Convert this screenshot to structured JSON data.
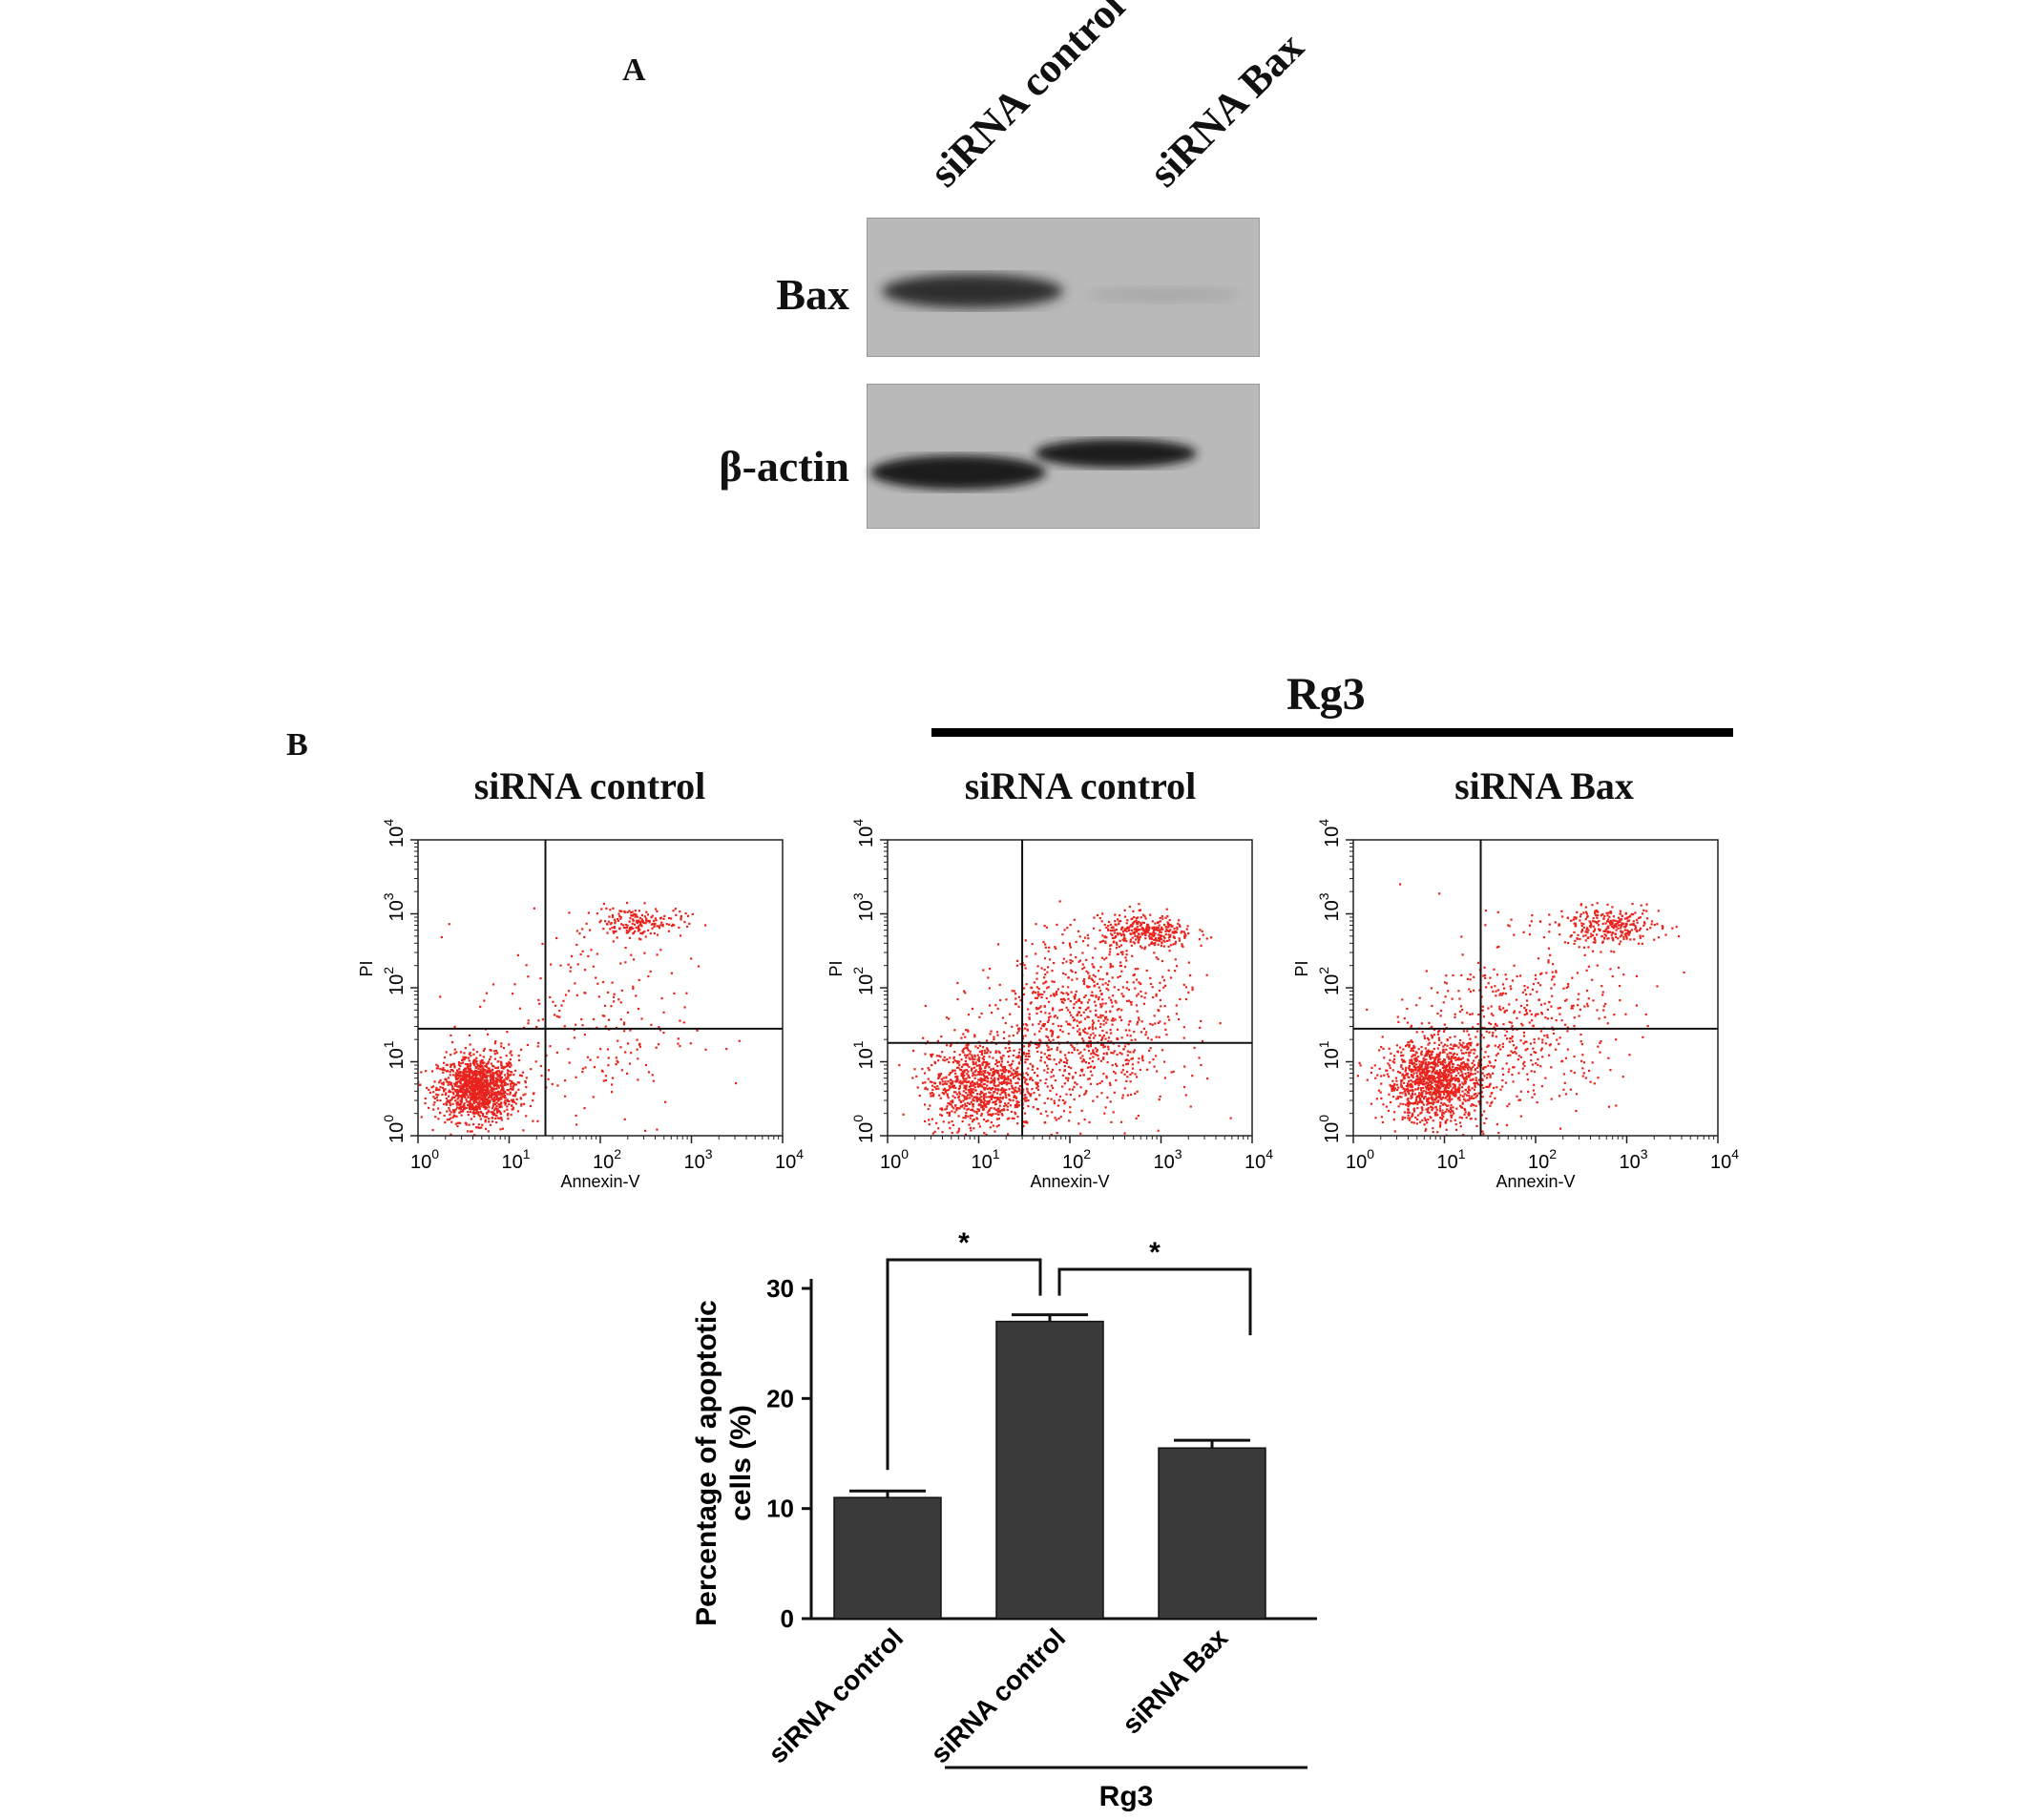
{
  "panel_a": {
    "letter": "A",
    "lanes": [
      "siRNA control",
      "siRNA Bax"
    ],
    "rows": [
      "Bax",
      "β-actin"
    ]
  },
  "panel_b": {
    "letter": "B",
    "treatment_label": "Rg3",
    "flow_titles": [
      "siRNA control",
      "siRNA control",
      "siRNA Bax"
    ],
    "flow_axis": {
      "xlabel": "Annexin-V",
      "ylabel": "PI",
      "tick_base": "10",
      "tick_exponents": [
        "0",
        "1",
        "2",
        "3",
        "4"
      ]
    }
  },
  "colors": {
    "dots": "#e8231d",
    "bars": "#3a3a3a",
    "blot_bg": "#b9b9b9"
  },
  "chart_data": [
    {
      "type": "scatter",
      "title": "siRNA control",
      "xlabel": "Annexin-V",
      "ylabel": "PI",
      "xscale": "log",
      "yscale": "log",
      "xlim": [
        1,
        10000
      ],
      "ylim": [
        1,
        10000
      ],
      "quadrant_gate": {
        "x": 25,
        "y": 28
      }
    },
    {
      "type": "scatter",
      "title": "siRNA control",
      "xlabel": "Annexin-V",
      "ylabel": "PI",
      "xscale": "log",
      "yscale": "log",
      "xlim": [
        1,
        10000
      ],
      "ylim": [
        1,
        10000
      ],
      "quadrant_gate": {
        "x": 30,
        "y": 18
      }
    },
    {
      "type": "scatter",
      "title": "siRNA Bax",
      "xlabel": "Annexin-V",
      "ylabel": "PI",
      "xscale": "log",
      "yscale": "log",
      "xlim": [
        1,
        10000
      ],
      "ylim": [
        1,
        10000
      ],
      "quadrant_gate": {
        "x": 25,
        "y": 28
      }
    },
    {
      "type": "bar",
      "categories": [
        "siRNA control",
        "siRNA control",
        "siRNA Bax"
      ],
      "values": [
        11,
        27,
        15.5
      ],
      "errors": [
        0.6,
        0.6,
        0.7
      ],
      "ylabel": "Percentage of apoptotic cells (%)",
      "ylim": [
        0,
        30
      ],
      "yticks": [
        "0",
        "10",
        "20",
        "30"
      ],
      "group_label": "Rg3",
      "significance": [
        {
          "between": [
            0,
            1
          ],
          "label": "*"
        },
        {
          "between": [
            1,
            2
          ],
          "label": "*"
        }
      ]
    }
  ]
}
